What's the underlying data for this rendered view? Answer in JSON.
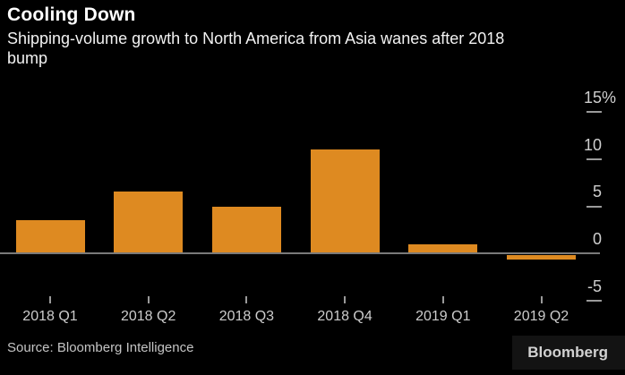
{
  "header": {
    "title": "Cooling Down",
    "subtitle_lines": [
      "Shipping-volume growth to North America from Asia wanes after 2018",
      "bump"
    ]
  },
  "chart_data": {
    "type": "bar",
    "title": "Cooling Down",
    "subtitle": "Shipping-volume growth to North America from Asia wanes after 2018 bump",
    "categories": [
      "2018 Q1",
      "2018 Q2",
      "2018 Q3",
      "2018 Q4",
      "2019 Q1",
      "2019 Q2"
    ],
    "values": [
      3.6,
      6.6,
      5.0,
      11.0,
      1.0,
      -0.5
    ],
    "xlabel": "",
    "ylabel": "",
    "y_unit": "%",
    "y_ticks": [
      15,
      10,
      5,
      0,
      -5
    ],
    "ylim": [
      -6.5,
      16
    ],
    "grid": false,
    "legend": null,
    "bar_color": "#de8a21",
    "axis_side": "right"
  },
  "footer": {
    "source": "Source: Bloomberg Intelligence",
    "logo": "Bloomberg"
  },
  "colors": {
    "background": "#000000",
    "bar": "#de8a21",
    "title_text": "#ffffff",
    "subtitle_text": "#f2f2f2",
    "axis_text": "#cfcfcf",
    "tick_mark": "#9a9a9a",
    "zero_line": "#7a7a7a",
    "source_text": "#c4c4c4",
    "logo_bg": "#131313",
    "logo_text": "#d2d2d2"
  }
}
